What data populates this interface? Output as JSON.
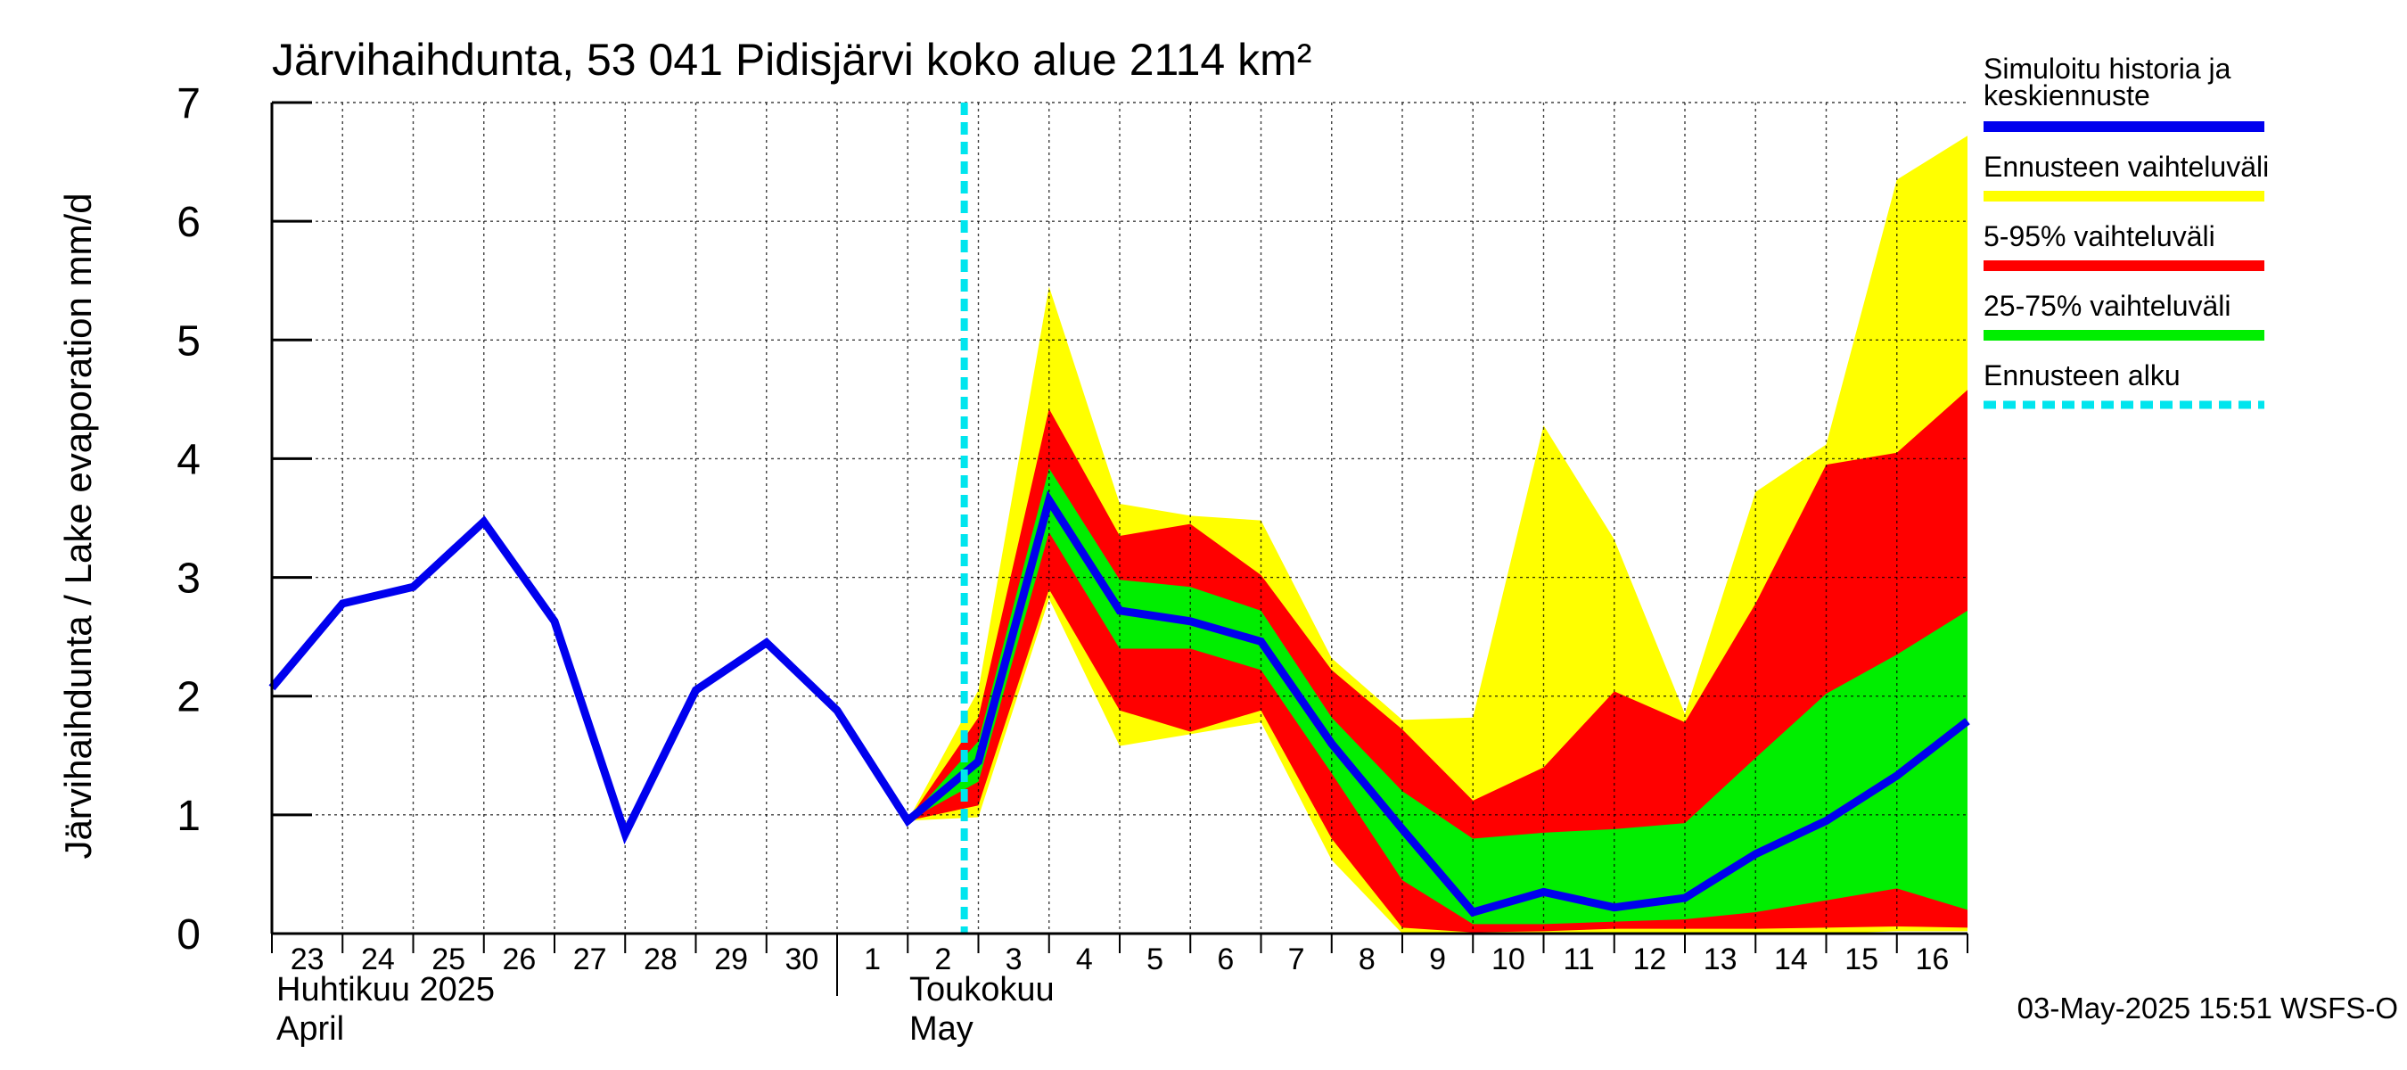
{
  "chart_data": {
    "type": "area",
    "title": "Järvihaihdunta, 53 041 Pidisjärvi koko alue 2114 km²",
    "ylabel": "Järvihaihdunta / Lake evaporation   mm/d",
    "ylim": [
      0,
      7
    ],
    "yticks": [
      0,
      1,
      2,
      3,
      4,
      5,
      6,
      7
    ],
    "x_start_day": 23,
    "x_end_day": 47,
    "x_tick_labels": [
      "23",
      "24",
      "25",
      "26",
      "27",
      "28",
      "29",
      "30",
      "1",
      "2",
      "3",
      "4",
      "5",
      "6",
      "7",
      "8",
      "9",
      "10",
      "11",
      "12",
      "13",
      "14",
      "15",
      "16"
    ],
    "month_labels": [
      {
        "line1": "Huhtikuu  2025",
        "line2": "April"
      },
      {
        "line1": "Toukokuu",
        "line2": "May"
      }
    ],
    "forecast_start_day": 32.8,
    "history": {
      "name": "Simuloitu historia ja keskiennuste",
      "x": [
        23,
        24,
        25,
        26,
        27,
        28,
        29,
        30,
        31,
        32,
        33,
        34,
        35,
        36,
        37,
        38,
        39,
        40,
        41,
        42,
        43,
        44,
        45,
        46,
        47
      ],
      "values": [
        2.07,
        2.78,
        2.92,
        3.47,
        2.63,
        0.84,
        2.05,
        2.45,
        1.88,
        0.95,
        1.45,
        3.65,
        2.72,
        2.63,
        2.46,
        1.6,
        0.88,
        0.18,
        0.35,
        0.22,
        0.3,
        0.67,
        0.95,
        1.33,
        1.79
      ]
    },
    "bands_x": [
      32,
      33,
      34,
      35,
      36,
      37,
      38,
      39,
      40,
      41,
      42,
      43,
      44,
      45,
      46,
      47
    ],
    "bands": [
      {
        "name": "Ennusteen vaihteluväli",
        "color": "#ffff00",
        "upper": [
          0.95,
          2.05,
          5.45,
          3.62,
          3.52,
          3.48,
          2.32,
          1.8,
          1.82,
          4.28,
          3.32,
          1.85,
          3.72,
          4.12,
          6.35,
          6.72
        ],
        "lower": [
          0.95,
          0.98,
          2.82,
          1.58,
          1.68,
          1.78,
          0.62,
          0.0,
          0.0,
          0.0,
          0.0,
          0.0,
          0.0,
          0.0,
          0.02,
          0.02
        ]
      },
      {
        "name": "5-95% vaihteluväli",
        "color": "#ff0000",
        "upper": [
          0.95,
          1.82,
          4.42,
          3.35,
          3.45,
          3.02,
          2.22,
          1.72,
          1.12,
          1.4,
          2.04,
          1.78,
          2.78,
          3.95,
          4.05,
          4.58
        ],
        "lower": [
          0.95,
          1.08,
          2.9,
          1.88,
          1.7,
          1.88,
          0.8,
          0.05,
          0.01,
          0.02,
          0.04,
          0.04,
          0.04,
          0.05,
          0.06,
          0.05
        ]
      },
      {
        "name": "25-75% vaihteluväli",
        "color": "#00ee00",
        "upper": [
          0.95,
          1.62,
          3.92,
          2.98,
          2.92,
          2.72,
          1.82,
          1.2,
          0.8,
          0.85,
          0.88,
          0.93,
          1.48,
          2.02,
          2.35,
          2.72
        ],
        "lower": [
          0.95,
          1.28,
          3.38,
          2.4,
          2.4,
          2.22,
          1.35,
          0.45,
          0.08,
          0.08,
          0.1,
          0.12,
          0.18,
          0.28,
          0.38,
          0.2
        ]
      }
    ],
    "legend": [
      {
        "label": "Simuloitu historia ja",
        "label2": "keskiennuste",
        "color": "#0000ee",
        "style": "solid"
      },
      {
        "label": "Ennusteen vaihteluväli",
        "color": "#ffff00",
        "style": "solid"
      },
      {
        "label": "5-95% vaihteluväli",
        "color": "#ff0000",
        "style": "solid"
      },
      {
        "label": "25-75% vaihteluväli",
        "color": "#00ee00",
        "style": "solid"
      },
      {
        "label": "Ennusteen alku",
        "color": "#00e5ee",
        "style": "dashed"
      }
    ],
    "legend_position": "right",
    "timestamp": "03-May-2025 15:51 WSFS-O",
    "grid": true
  }
}
